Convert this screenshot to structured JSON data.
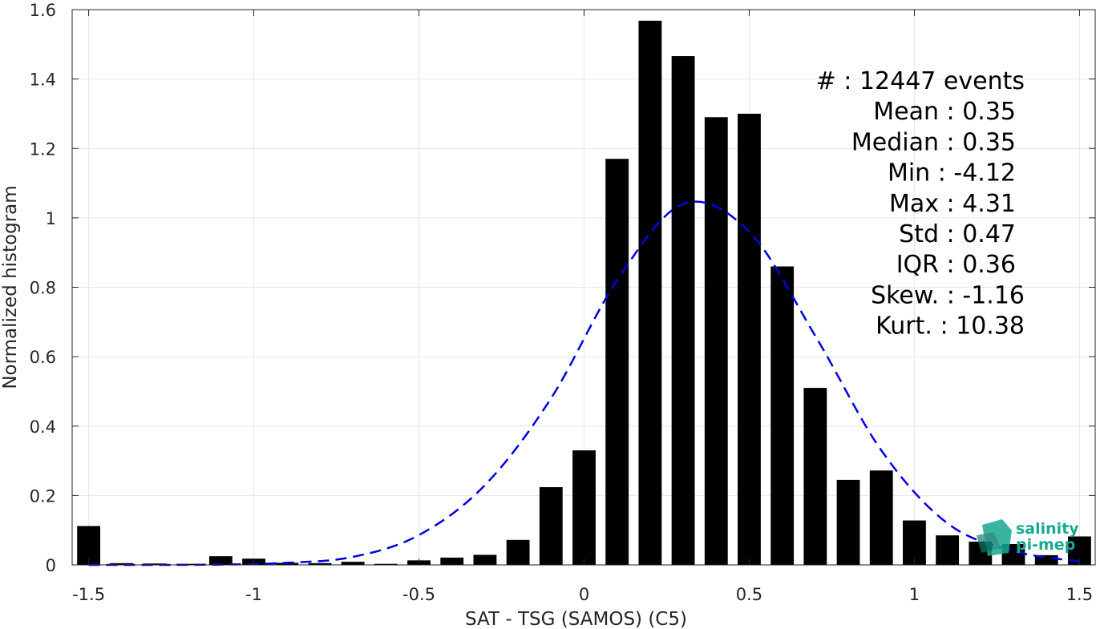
{
  "chart_data": {
    "type": "bar",
    "xlabel": "SAT - TSG (SAMOS) (C5)",
    "ylabel": "Normalized histogram",
    "xlim": [
      -1.55,
      1.55
    ],
    "ylim": [
      0,
      1.6
    ],
    "xticks": [
      -1.5,
      -1,
      -0.5,
      0,
      0.5,
      1,
      1.5
    ],
    "xtick_labels": [
      "-1.5",
      "-1",
      "-0.5",
      "0",
      "0.5",
      "1",
      "1.5"
    ],
    "yticks": [
      0,
      0.2,
      0.4,
      0.6,
      0.8,
      1,
      1.2,
      1.4,
      1.6
    ],
    "ytick_labels": [
      "0",
      "0.2",
      "0.4",
      "0.6",
      "0.8",
      "1",
      "1.2",
      "1.4",
      "1.6"
    ],
    "grid": true,
    "bin_width": 0.1,
    "bar_color": "#000000",
    "series": [
      {
        "x": [
          -1.5,
          -1.4,
          -1.3,
          -1.2,
          -1.1,
          -1.0,
          -0.9,
          -0.8,
          -0.7,
          -0.6,
          -0.5,
          -0.4,
          -0.3,
          -0.2,
          -0.1,
          0.0,
          0.1,
          0.2,
          0.3,
          0.4,
          0.5,
          0.6,
          0.7,
          0.8,
          0.9,
          1.0,
          1.1,
          1.2,
          1.3,
          1.4,
          1.5
        ],
        "values": [
          0.112,
          0.005,
          0.004,
          0.003,
          0.025,
          0.018,
          0.006,
          0.005,
          0.009,
          0.003,
          0.013,
          0.021,
          0.029,
          0.072,
          0.224,
          0.33,
          1.17,
          1.568,
          1.466,
          1.29,
          1.3,
          0.86,
          0.51,
          0.245,
          0.272,
          0.128,
          0.085,
          0.067,
          0.06,
          0.028,
          0.082
        ]
      }
    ],
    "fit_curve": {
      "style": "dashed",
      "color": "#0000e6",
      "x": [
        -1.5,
        -1.3,
        -1.1,
        -0.9,
        -0.7,
        -0.5,
        -0.3,
        -0.1,
        0.1,
        0.3,
        0.5,
        0.7,
        0.9,
        1.1,
        1.3,
        1.5
      ],
      "y": [
        0.0,
        0.0,
        0.001,
        0.006,
        0.023,
        0.086,
        0.23,
        0.48,
        0.82,
        1.04,
        0.96,
        0.66,
        0.33,
        0.12,
        0.04,
        0.01
      ]
    },
    "annotation_lines": [
      "#  : 12447 events",
      "Mean : 0.35",
      "Median : 0.35",
      "Min : -4.12",
      "Max : 4.31",
      "Std : 0.47",
      "IQR : 0.36",
      "Skew. : -1.16",
      "Kurt. : 10.38"
    ]
  },
  "logo": {
    "line1": "salinity",
    "line2": "pi-mep",
    "color": "#17a98f"
  }
}
